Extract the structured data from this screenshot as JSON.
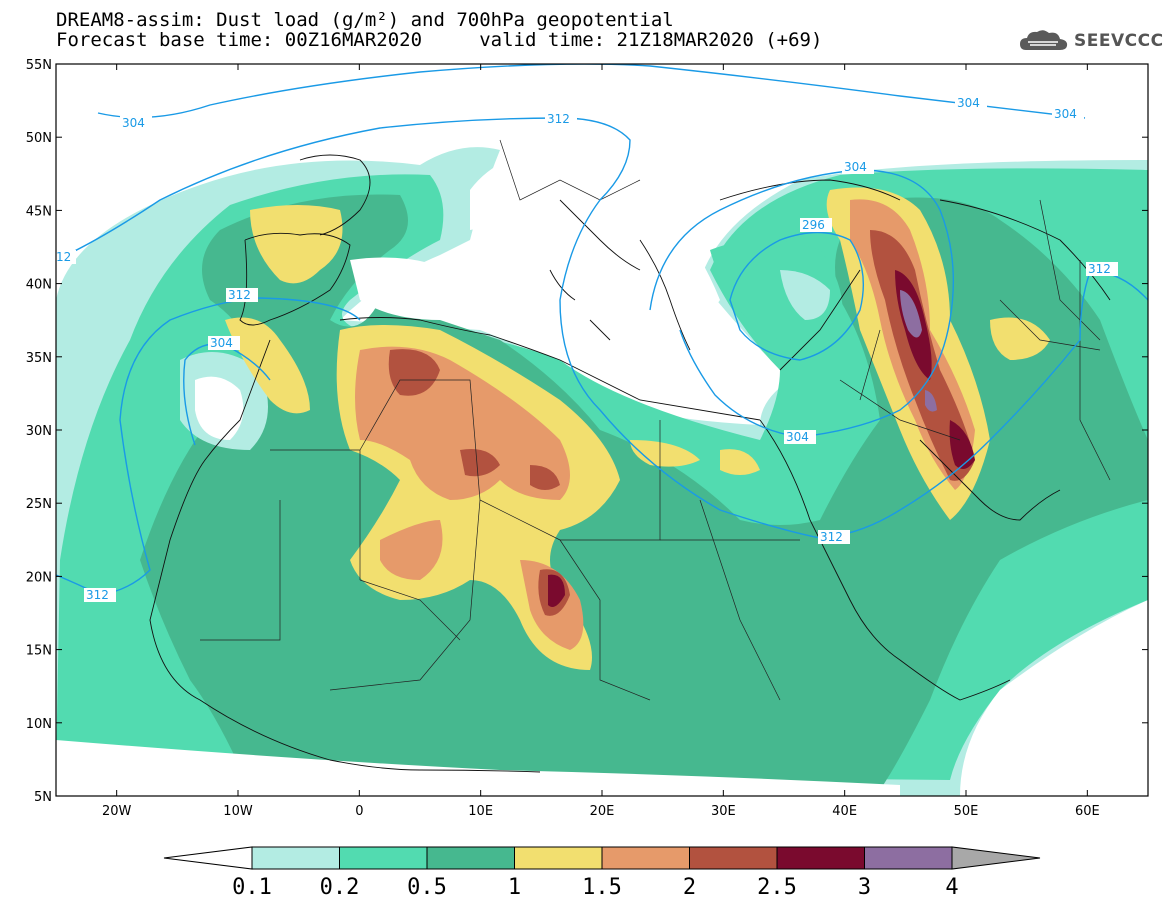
{
  "title_line1": "DREAM8-assim: Dust load (g/m²) and 700hPa geopotential",
  "title_line2": "Forecast base time: 00Z16MAR2020     valid time: 21Z18MAR2020 (+69)",
  "logo_text": "SEEVCCC",
  "map": {
    "lat_labels": [
      "55N",
      "50N",
      "45N",
      "40N",
      "35N",
      "30N",
      "25N",
      "20N",
      "15N",
      "10N",
      "5N"
    ],
    "lon_labels": [
      "20W",
      "10W",
      "0",
      "10E",
      "20E",
      "30E",
      "40E",
      "50E",
      "60E"
    ]
  },
  "contour_labels": [
    "304",
    "312",
    "304",
    "304",
    "296",
    "304",
    "312",
    "312",
    "312",
    "304",
    "304",
    "312",
    "12"
  ],
  "colorbar": {
    "labels": [
      "0.1",
      "0.2",
      "0.5",
      "1",
      "1.5",
      "2",
      "2.5",
      "3",
      "4"
    ],
    "colors": [
      "#b3ece3",
      "#52dbb0",
      "#46b88f",
      "#f2df6f",
      "#e69a6a",
      "#b2523f",
      "#7a0a2e",
      "#8d6ea1"
    ],
    "under_color": "#ffffff",
    "over_color": "#a8a8a8"
  },
  "geopotential_line_color": "#1a9ae6"
}
